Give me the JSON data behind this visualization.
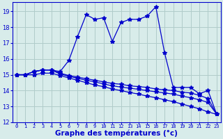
{
  "x": [
    0,
    1,
    2,
    3,
    4,
    5,
    6,
    7,
    8,
    9,
    10,
    11,
    12,
    13,
    14,
    15,
    16,
    17,
    18,
    19,
    20,
    21,
    22,
    23
  ],
  "line1": [
    15.0,
    15.0,
    15.2,
    15.3,
    15.3,
    15.2,
    15.9,
    17.4,
    18.8,
    18.5,
    18.6,
    17.1,
    18.3,
    18.5,
    18.5,
    18.7,
    19.3,
    16.4,
    14.2,
    14.2,
    14.2,
    13.8,
    14.0,
    12.5
  ],
  "line2": [
    15.0,
    15.0,
    15.2,
    15.3,
    15.3,
    15.1,
    14.95,
    14.85,
    14.75,
    14.65,
    14.55,
    14.45,
    14.4,
    14.3,
    14.25,
    14.2,
    14.1,
    14.05,
    14.0,
    13.9,
    13.85,
    13.7,
    13.5,
    12.5
  ],
  "line3": [
    15.0,
    15.0,
    15.2,
    15.3,
    15.3,
    15.05,
    14.9,
    14.78,
    14.65,
    14.55,
    14.42,
    14.3,
    14.22,
    14.15,
    14.08,
    14.0,
    13.92,
    13.85,
    13.78,
    13.65,
    13.55,
    13.42,
    13.25,
    12.5
  ],
  "line4": [
    15.0,
    15.0,
    15.0,
    15.1,
    15.1,
    14.95,
    14.8,
    14.65,
    14.5,
    14.35,
    14.25,
    14.1,
    14.0,
    13.88,
    13.78,
    13.65,
    13.55,
    13.42,
    13.3,
    13.15,
    13.0,
    12.85,
    12.65,
    12.5
  ],
  "color": "#0000cc",
  "bg_color": "#d8ecea",
  "grid_color": "#b0ccca",
  "xlabel": "Graphe des températures (°c)",
  "xlim": [
    -0.5,
    23.5
  ],
  "ylim": [
    12,
    19.6
  ],
  "yticks": [
    12,
    13,
    14,
    15,
    16,
    17,
    18,
    19
  ],
  "xticks": [
    0,
    1,
    2,
    3,
    4,
    5,
    6,
    7,
    8,
    9,
    10,
    11,
    12,
    13,
    14,
    15,
    16,
    17,
    18,
    19,
    20,
    21,
    22,
    23
  ],
  "label_fontsize": 7.5
}
